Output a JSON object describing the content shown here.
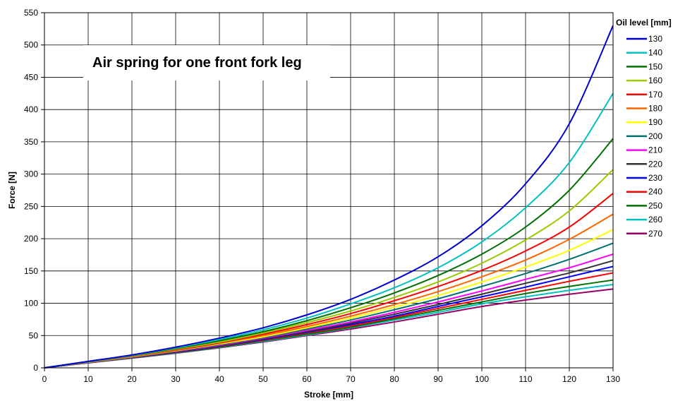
{
  "chart_data": {
    "type": "line",
    "title": "Air spring for one front fork leg",
    "xlabel": "Stroke [mm]",
    "ylabel": "Force [N]",
    "xlim": [
      0,
      130
    ],
    "ylim": [
      0,
      550
    ],
    "x_ticks": [
      "0",
      "10",
      "20",
      "30",
      "40",
      "50",
      "60",
      "70",
      "80",
      "90",
      "100",
      "110",
      "120",
      "130"
    ],
    "y_ticks": [
      "0",
      "50",
      "100",
      "150",
      "200",
      "250",
      "300",
      "350",
      "400",
      "450",
      "500",
      "550"
    ],
    "grid": true,
    "legend_title": "Oil level [mm]",
    "legend_position": "right",
    "x": [
      0,
      10,
      20,
      30,
      40,
      50,
      60,
      70,
      80,
      90,
      100,
      110,
      120,
      130
    ],
    "series": [
      {
        "name": "130",
        "color": "#0000cc",
        "values": [
          0,
          10,
          20,
          32,
          46,
          62,
          82,
          106,
          136,
          172,
          220,
          285,
          378,
          530
        ]
      },
      {
        "name": "140",
        "color": "#00c0c0",
        "values": [
          0,
          9.7,
          19.5,
          31,
          44,
          59,
          77,
          99,
          124,
          155,
          195,
          248,
          318,
          425
        ]
      },
      {
        "name": "150",
        "color": "#007000",
        "values": [
          0,
          9.5,
          19,
          30,
          42,
          56,
          73,
          93,
          116,
          143,
          176,
          218,
          275,
          355
        ]
      },
      {
        "name": "160",
        "color": "#99cc00",
        "values": [
          0,
          9.3,
          18.5,
          29,
          40,
          54,
          70,
          88,
          109,
          133,
          162,
          198,
          243,
          307
        ]
      },
      {
        "name": "170",
        "color": "#ff0000",
        "values": [
          0,
          9.1,
          18,
          28,
          39,
          52,
          67,
          84,
          104,
          126,
          151,
          181,
          218,
          270
        ]
      },
      {
        "name": "180",
        "color": "#ff6600",
        "values": [
          0,
          8.9,
          17.6,
          27,
          38,
          50,
          64,
          80,
          98,
          118,
          141,
          167,
          199,
          238
        ]
      },
      {
        "name": "190",
        "color": "#ffff00",
        "values": [
          0,
          8.7,
          17.2,
          26.5,
          37,
          48,
          62,
          77,
          94,
          112,
          133,
          156,
          182,
          214
        ]
      },
      {
        "name": "200",
        "color": "#007070",
        "values": [
          0,
          8.5,
          16.8,
          26,
          36,
          47,
          60,
          74,
          90,
          107,
          126,
          146,
          168,
          193
        ]
      },
      {
        "name": "210",
        "color": "#ff00ff",
        "values": [
          0,
          8.3,
          16.5,
          25.5,
          35,
          46,
          58,
          71,
          86,
          102,
          119,
          137,
          155,
          176
        ]
      },
      {
        "name": "220",
        "color": "#333333",
        "values": [
          0,
          8.2,
          16.2,
          25,
          34,
          45,
          56,
          69,
          83,
          98,
          114,
          131,
          147,
          166
        ]
      },
      {
        "name": "230",
        "color": "#0000ff",
        "values": [
          0,
          8.1,
          16,
          24.5,
          33.5,
          44,
          55,
          67,
          80,
          95,
          110,
          125,
          141,
          157
        ]
      },
      {
        "name": "240",
        "color": "#ff0000",
        "values": [
          0,
          8,
          15.7,
          24,
          33,
          43,
          54,
          65,
          78,
          92,
          106,
          120,
          134,
          147
        ]
      },
      {
        "name": "250",
        "color": "#007000",
        "values": [
          0,
          7.9,
          15.5,
          23.5,
          32,
          42,
          52,
          63,
          76,
          89,
          102,
          115,
          126,
          136
        ]
      },
      {
        "name": "260",
        "color": "#00c0c0",
        "values": [
          0,
          7.8,
          15.2,
          23,
          31.5,
          41,
          51,
          62,
          74,
          86,
          99,
          110,
          120,
          129
        ]
      },
      {
        "name": "270",
        "color": "#990066",
        "values": [
          0,
          7.7,
          15,
          22.5,
          31,
          40,
          50,
          60,
          71,
          83,
          95,
          105,
          114,
          122
        ]
      }
    ]
  }
}
